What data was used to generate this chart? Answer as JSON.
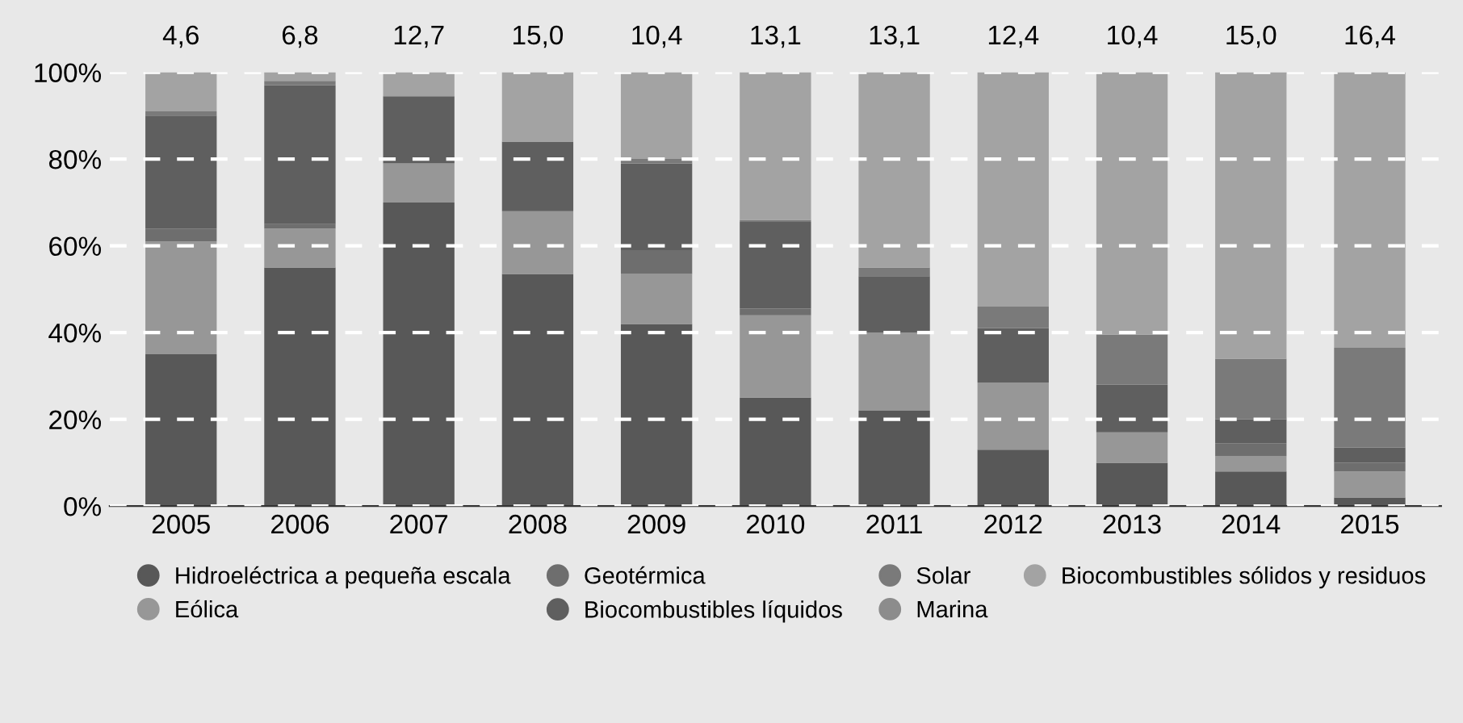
{
  "chart_data": {
    "type": "bar",
    "stacked": true,
    "categories": [
      "2005",
      "2006",
      "2007",
      "2008",
      "2009",
      "2010",
      "2011",
      "2012",
      "2013",
      "2014",
      "2015"
    ],
    "series": [
      {
        "name": "Hidroeléctrica a pequeña escala",
        "color": "#585858",
        "values": [
          35,
          55,
          70,
          53.5,
          42,
          25,
          22,
          13,
          10,
          8,
          2
        ]
      },
      {
        "name": "Eólica",
        "color": "#979797",
        "values": [
          26,
          9,
          9,
          14.5,
          11.5,
          19,
          18,
          15.5,
          7,
          3.5,
          6
        ]
      },
      {
        "name": "Geotérmica",
        "color": "#6e6e6e",
        "values": [
          3,
          1,
          0,
          0,
          5.5,
          1.5,
          0,
          0,
          0,
          3,
          2
        ]
      },
      {
        "name": "Biocombustibles líquidos",
        "color": "#5f5f5f",
        "values": [
          26,
          32,
          15.5,
          16,
          20,
          20,
          13,
          12.5,
          11,
          5.5,
          3.5
        ]
      },
      {
        "name": "Solar",
        "color": "#7a7a7a",
        "values": [
          1,
          1,
          0,
          0,
          1,
          0.5,
          2,
          5,
          11.5,
          14,
          23
        ]
      },
      {
        "name": "Marina",
        "color": "#8c8c8c",
        "values": [
          0,
          0,
          0,
          0,
          0,
          0,
          0,
          0,
          0,
          0,
          0
        ]
      },
      {
        "name": "Biocombustibles sólidos y residuos",
        "color": "#a3a3a3",
        "values": [
          9,
          2,
          5.5,
          16,
          20,
          34,
          45,
          54,
          60.5,
          66,
          63.5
        ]
      }
    ],
    "ylim": [
      0,
      100
    ],
    "yticks": [
      {
        "value": 0,
        "label": "0%"
      },
      {
        "value": 20,
        "label": "20%"
      },
      {
        "value": 40,
        "label": "40%"
      },
      {
        "value": 60,
        "label": "60%"
      },
      {
        "value": 80,
        "label": "80%"
      },
      {
        "value": 100,
        "label": "100%"
      }
    ],
    "grid": "y",
    "legend": "bottom",
    "annotations": [
      {
        "text": "4,6",
        "x": "2005",
        "y": 100
      },
      {
        "text": "6,8",
        "x": "2006",
        "y": 100
      },
      {
        "text": "12,7",
        "x": "2007",
        "y": 100
      },
      {
        "text": "15,0",
        "x": "2008",
        "y": 100
      },
      {
        "text": "10,4",
        "x": "2009",
        "y": 100
      },
      {
        "text": "13,1",
        "x": "2010",
        "y": 100
      },
      {
        "text": "13,1",
        "x": "2011",
        "y": 100
      },
      {
        "text": "12,4",
        "x": "2012",
        "y": 100
      },
      {
        "text": "10,4",
        "x": "2013",
        "y": 100
      },
      {
        "text": "15,0",
        "x": "2014",
        "y": 100
      },
      {
        "text": "16,4",
        "x": "2015",
        "y": 100
      }
    ]
  }
}
